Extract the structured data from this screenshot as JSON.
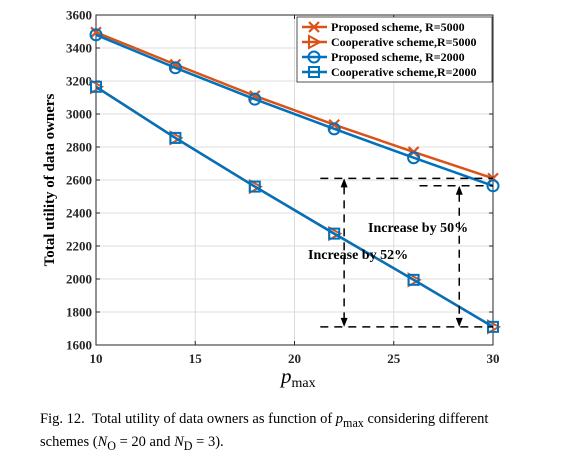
{
  "chart_data": {
    "type": "line",
    "ylabel": "Total utility of data owners",
    "xlabel_base": "p",
    "xlabel_sub": "max",
    "xlim": [
      10,
      30
    ],
    "ylim": [
      1600,
      3600
    ],
    "xticks": [
      10,
      15,
      20,
      25,
      30
    ],
    "yticks": [
      1600,
      1800,
      2000,
      2200,
      2400,
      2600,
      2800,
      3000,
      3200,
      3400,
      3600
    ],
    "grid": true,
    "legend_position": "top-right",
    "x": [
      10,
      14,
      18,
      22,
      26,
      30
    ],
    "series": [
      {
        "name": "Proposed scheme, R=5000",
        "color": "#D95319",
        "marker": "x",
        "values": [
          3495,
          3300,
          3110,
          2935,
          2770,
          2610
        ]
      },
      {
        "name": "Cooperative scheme,R=5000",
        "color": "#D95319",
        "marker": "triangle-right",
        "values": [
          3165,
          2855,
          2560,
          2275,
          1995,
          1710
        ]
      },
      {
        "name": "Proposed scheme, R=2000",
        "color": "#0072BD",
        "marker": "circle",
        "values": [
          3480,
          3280,
          3090,
          2910,
          2735,
          2565
        ]
      },
      {
        "name": "Cooperative scheme,R=2000",
        "color": "#0072BD",
        "marker": "square",
        "values": [
          3165,
          2855,
          2560,
          2275,
          1995,
          1710
        ]
      }
    ],
    "annotations": [
      {
        "text": "Increase by 50%",
        "x": 28.3,
        "y_from": 1710,
        "y_to": 2565
      },
      {
        "text": "Increase by 52%",
        "x": 22.5,
        "y_from": 1710,
        "y_to": 2610
      }
    ]
  },
  "caption": {
    "fig": "Fig. 12.",
    "line1_a": "Total utility of data owners as function of ",
    "p": "p",
    "max": "max",
    "line1_b": " considering different",
    "line2_a": "schemes (",
    "no_n": "N",
    "no_sub": "O",
    "eq20": " = 20 and ",
    "nd_n": "N",
    "nd_sub": "D",
    "eq3": " = 3)."
  }
}
